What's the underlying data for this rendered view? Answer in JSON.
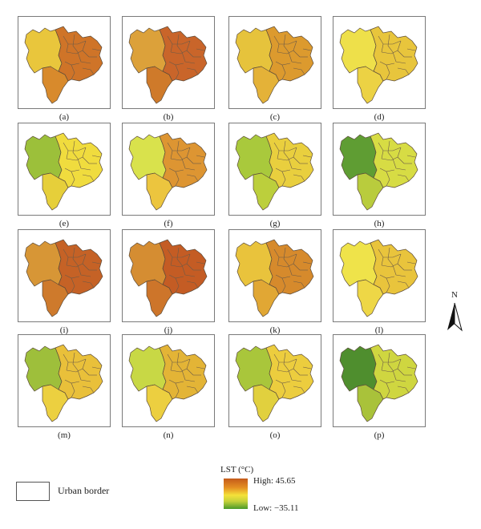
{
  "panels": [
    {
      "label": "(a)",
      "west": "#e9c63c",
      "east": "#cf7428",
      "south": "#d88a2c"
    },
    {
      "label": "(b)",
      "west": "#dca13a",
      "east": "#c9652a",
      "south": "#cf7a2a"
    },
    {
      "label": "(c)",
      "west": "#e6c33c",
      "east": "#dc9a2e",
      "south": "#e4b238"
    },
    {
      "label": "(d)",
      "west": "#eee04a",
      "east": "#e8c53c",
      "south": "#ecd244"
    },
    {
      "label": "(e)",
      "west": "#9cc03a",
      "east": "#f0dc3e",
      "south": "#e6cf3a"
    },
    {
      "label": "(f)",
      "west": "#d9e24c",
      "east": "#dd9532",
      "south": "#ecc53e"
    },
    {
      "label": "(g)",
      "west": "#a9c93c",
      "east": "#e9cf3e",
      "south": "#bccf3c"
    },
    {
      "label": "(h)",
      "west": "#5f9d33",
      "east": "#d7dc44",
      "south": "#b9cc3d"
    },
    {
      "label": "(i)",
      "west": "#d79636",
      "east": "#c56226",
      "south": "#ce7a2c"
    },
    {
      "label": "(j)",
      "west": "#d58d32",
      "east": "#c45c24",
      "south": "#cd752a"
    },
    {
      "label": "(k)",
      "west": "#e9c33c",
      "east": "#d68a2c",
      "south": "#e1a734"
    },
    {
      "label": "(l)",
      "west": "#efe34a",
      "east": "#e9c43c",
      "south": "#eed746"
    },
    {
      "label": "(m)",
      "west": "#9ebf3b",
      "east": "#e9c03a",
      "south": "#ecd040"
    },
    {
      "label": "(n)",
      "west": "#c8d845",
      "east": "#e3b436",
      "south": "#eccf40"
    },
    {
      "label": "(o)",
      "west": "#a9c63b",
      "east": "#eccd3e",
      "south": "#e1d03e"
    },
    {
      "label": "(p)",
      "west": "#4f8e2e",
      "east": "#cfd640",
      "south": "#a9c23a"
    }
  ],
  "north_arrow": {
    "letter": "N"
  },
  "legend": {
    "urban_border_label": "Urban border",
    "lst_title": "LST (°C)",
    "high_label": "High: 45.65",
    "low_label": "Low: −35.11",
    "ramp_colors": [
      "#c45a1a",
      "#e58f22",
      "#f4e23a",
      "#c4d13a",
      "#4a9a2a"
    ]
  }
}
